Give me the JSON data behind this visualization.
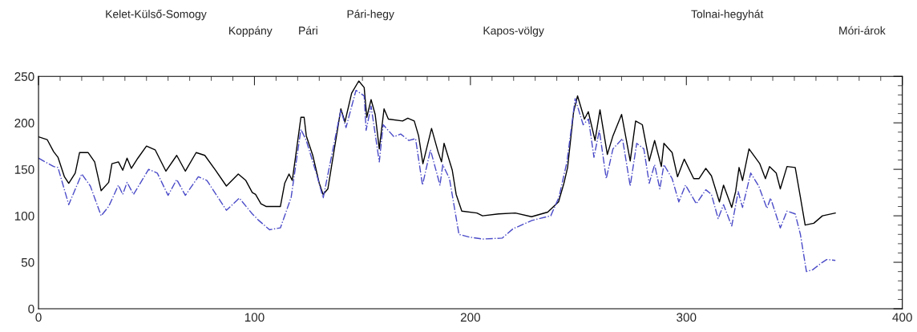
{
  "chart_data": {
    "type": "line",
    "xlim": [
      0,
      400
    ],
    "xticks": [
      0,
      100,
      200,
      300,
      400
    ],
    "ylim": [
      0,
      250
    ],
    "yticks": [
      0,
      50,
      100,
      150,
      200,
      250
    ],
    "grid": false,
    "legend": false,
    "annotations": [
      "Kelet-Külső-Somogy",
      "Koppány",
      "Pári",
      "Pári-hegy",
      "Kapos-völgy",
      "Tolnai-hegyhát",
      "Móri-árok"
    ],
    "series": [
      {
        "color": "#000000",
        "line_style": "solid",
        "x": [
          0,
          4,
          7,
          9,
          12,
          14,
          17,
          19,
          23,
          26,
          29,
          32.5,
          34,
          37,
          39,
          41,
          43,
          46,
          50,
          54,
          59,
          64,
          68,
          73,
          77,
          82,
          87,
          92.5,
          96,
          99,
          100.5,
          103,
          105.5,
          112,
          114,
          116,
          117.5,
          119,
          121.5,
          123,
          124,
          127,
          130,
          131.8,
          134,
          140,
          141.9,
          145,
          148.3,
          150.8,
          152,
          154,
          155.9,
          157.8,
          160,
          162,
          168.6,
          171,
          174,
          176,
          178,
          182,
          185,
          186.6,
          187.8,
          191.6,
          193.4,
          196,
          203,
          205.6,
          213,
          220.8,
          228.3,
          235.8,
          240.8,
          243.3,
          245,
          247.8,
          249.6,
          252.8,
          254.6,
          257.7,
          260,
          263.4,
          266,
          270,
          274,
          276.5,
          279.6,
          282.8,
          285.3,
          288.4,
          289.6,
          293.4,
          295.9,
          299,
          303.4,
          305.9,
          309,
          311.6,
          315.3,
          317.2,
          321,
          322.8,
          324.4,
          326,
          329,
          334,
          336.6,
          338.5,
          341.6,
          343.5,
          346.6,
          350.4,
          352.8,
          355,
          359,
          363,
          369
        ],
        "values": [
          185,
          182,
          169,
          163,
          142,
          135,
          146,
          168,
          168,
          158,
          127,
          136,
          156,
          158,
          149,
          162,
          151,
          162,
          175,
          171,
          148,
          165,
          148,
          168,
          165,
          149,
          132,
          145,
          138,
          125,
          123,
          113,
          110,
          110,
          135,
          145,
          138,
          163,
          206,
          206,
          186,
          165,
          135,
          123,
          129,
          215,
          201,
          232,
          245,
          238,
          206,
          225,
          209,
          172,
          215,
          204,
          202,
          205,
          202,
          186,
          156,
          194,
          169,
          158,
          178,
          149,
          123,
          105,
          103,
          100,
          102,
          103,
          99,
          104,
          115,
          135,
          152,
          212,
          229,
          204,
          212,
          181,
          214,
          166,
          186,
          209,
          159,
          202,
          198,
          159,
          181,
          153,
          178,
          168,
          142,
          161,
          140,
          140,
          151,
          143,
          115,
          133,
          109,
          126,
          152,
          138,
          172,
          156,
          140,
          153,
          146,
          129,
          153,
          152,
          120,
          90,
          92,
          100,
          103
        ]
      },
      {
        "color": "#4a4ac8",
        "line_style": "dashdot",
        "x": [
          0,
          7,
          9,
          14,
          20,
          24,
          29,
          32.5,
          37,
          39,
          41,
          44,
          51,
          55,
          60,
          64,
          68,
          74,
          78,
          87,
          93,
          99,
          102,
          107,
          112,
          114,
          117,
          121.5,
          124,
          129,
          131.8,
          140,
          142.4,
          147,
          150.8,
          151.7,
          154,
          157.8,
          159.6,
          164.6,
          167.7,
          171.5,
          174.6,
          177.8,
          181.5,
          185.9,
          187.2,
          190.3,
          194.7,
          199.7,
          205.9,
          214.7,
          219.7,
          228.5,
          237.2,
          241,
          244.7,
          248.5,
          252.2,
          254.7,
          257.2,
          259.7,
          262.9,
          266,
          270.4,
          274,
          277,
          280.3,
          282.8,
          285.3,
          287.7,
          289.6,
          293.4,
          296.5,
          299.6,
          304.6,
          309,
          311.6,
          314.7,
          317.2,
          321,
          324,
          326,
          329.8,
          333.5,
          337.3,
          339,
          343.5,
          346.6,
          350.4,
          352.8,
          355.6,
          358.5,
          363,
          365,
          369
        ],
        "values": [
          162,
          153,
          152,
          112,
          145,
          132,
          100,
          110,
          133,
          123,
          136,
          123,
          150,
          146,
          122,
          139,
          122,
          142,
          138,
          106,
          119,
          102,
          95,
          85,
          87,
          100,
          120,
          193,
          181,
          143,
          119,
          214,
          195,
          235,
          229,
          192,
          218,
          158,
          198,
          185,
          188,
          181,
          183,
          133,
          171,
          133,
          155,
          140,
          80,
          77,
          75,
          76,
          86,
          95,
          100,
          120,
          158,
          226,
          198,
          204,
          163,
          192,
          140,
          172,
          183,
          132,
          178,
          172,
          135,
          155,
          129,
          155,
          140,
          115,
          133,
          113,
          128,
          123,
          97,
          112,
          89,
          126,
          109,
          146,
          132,
          108,
          119,
          87,
          105,
          102,
          80,
          40,
          42,
          50,
          53,
          52
        ]
      }
    ]
  }
}
